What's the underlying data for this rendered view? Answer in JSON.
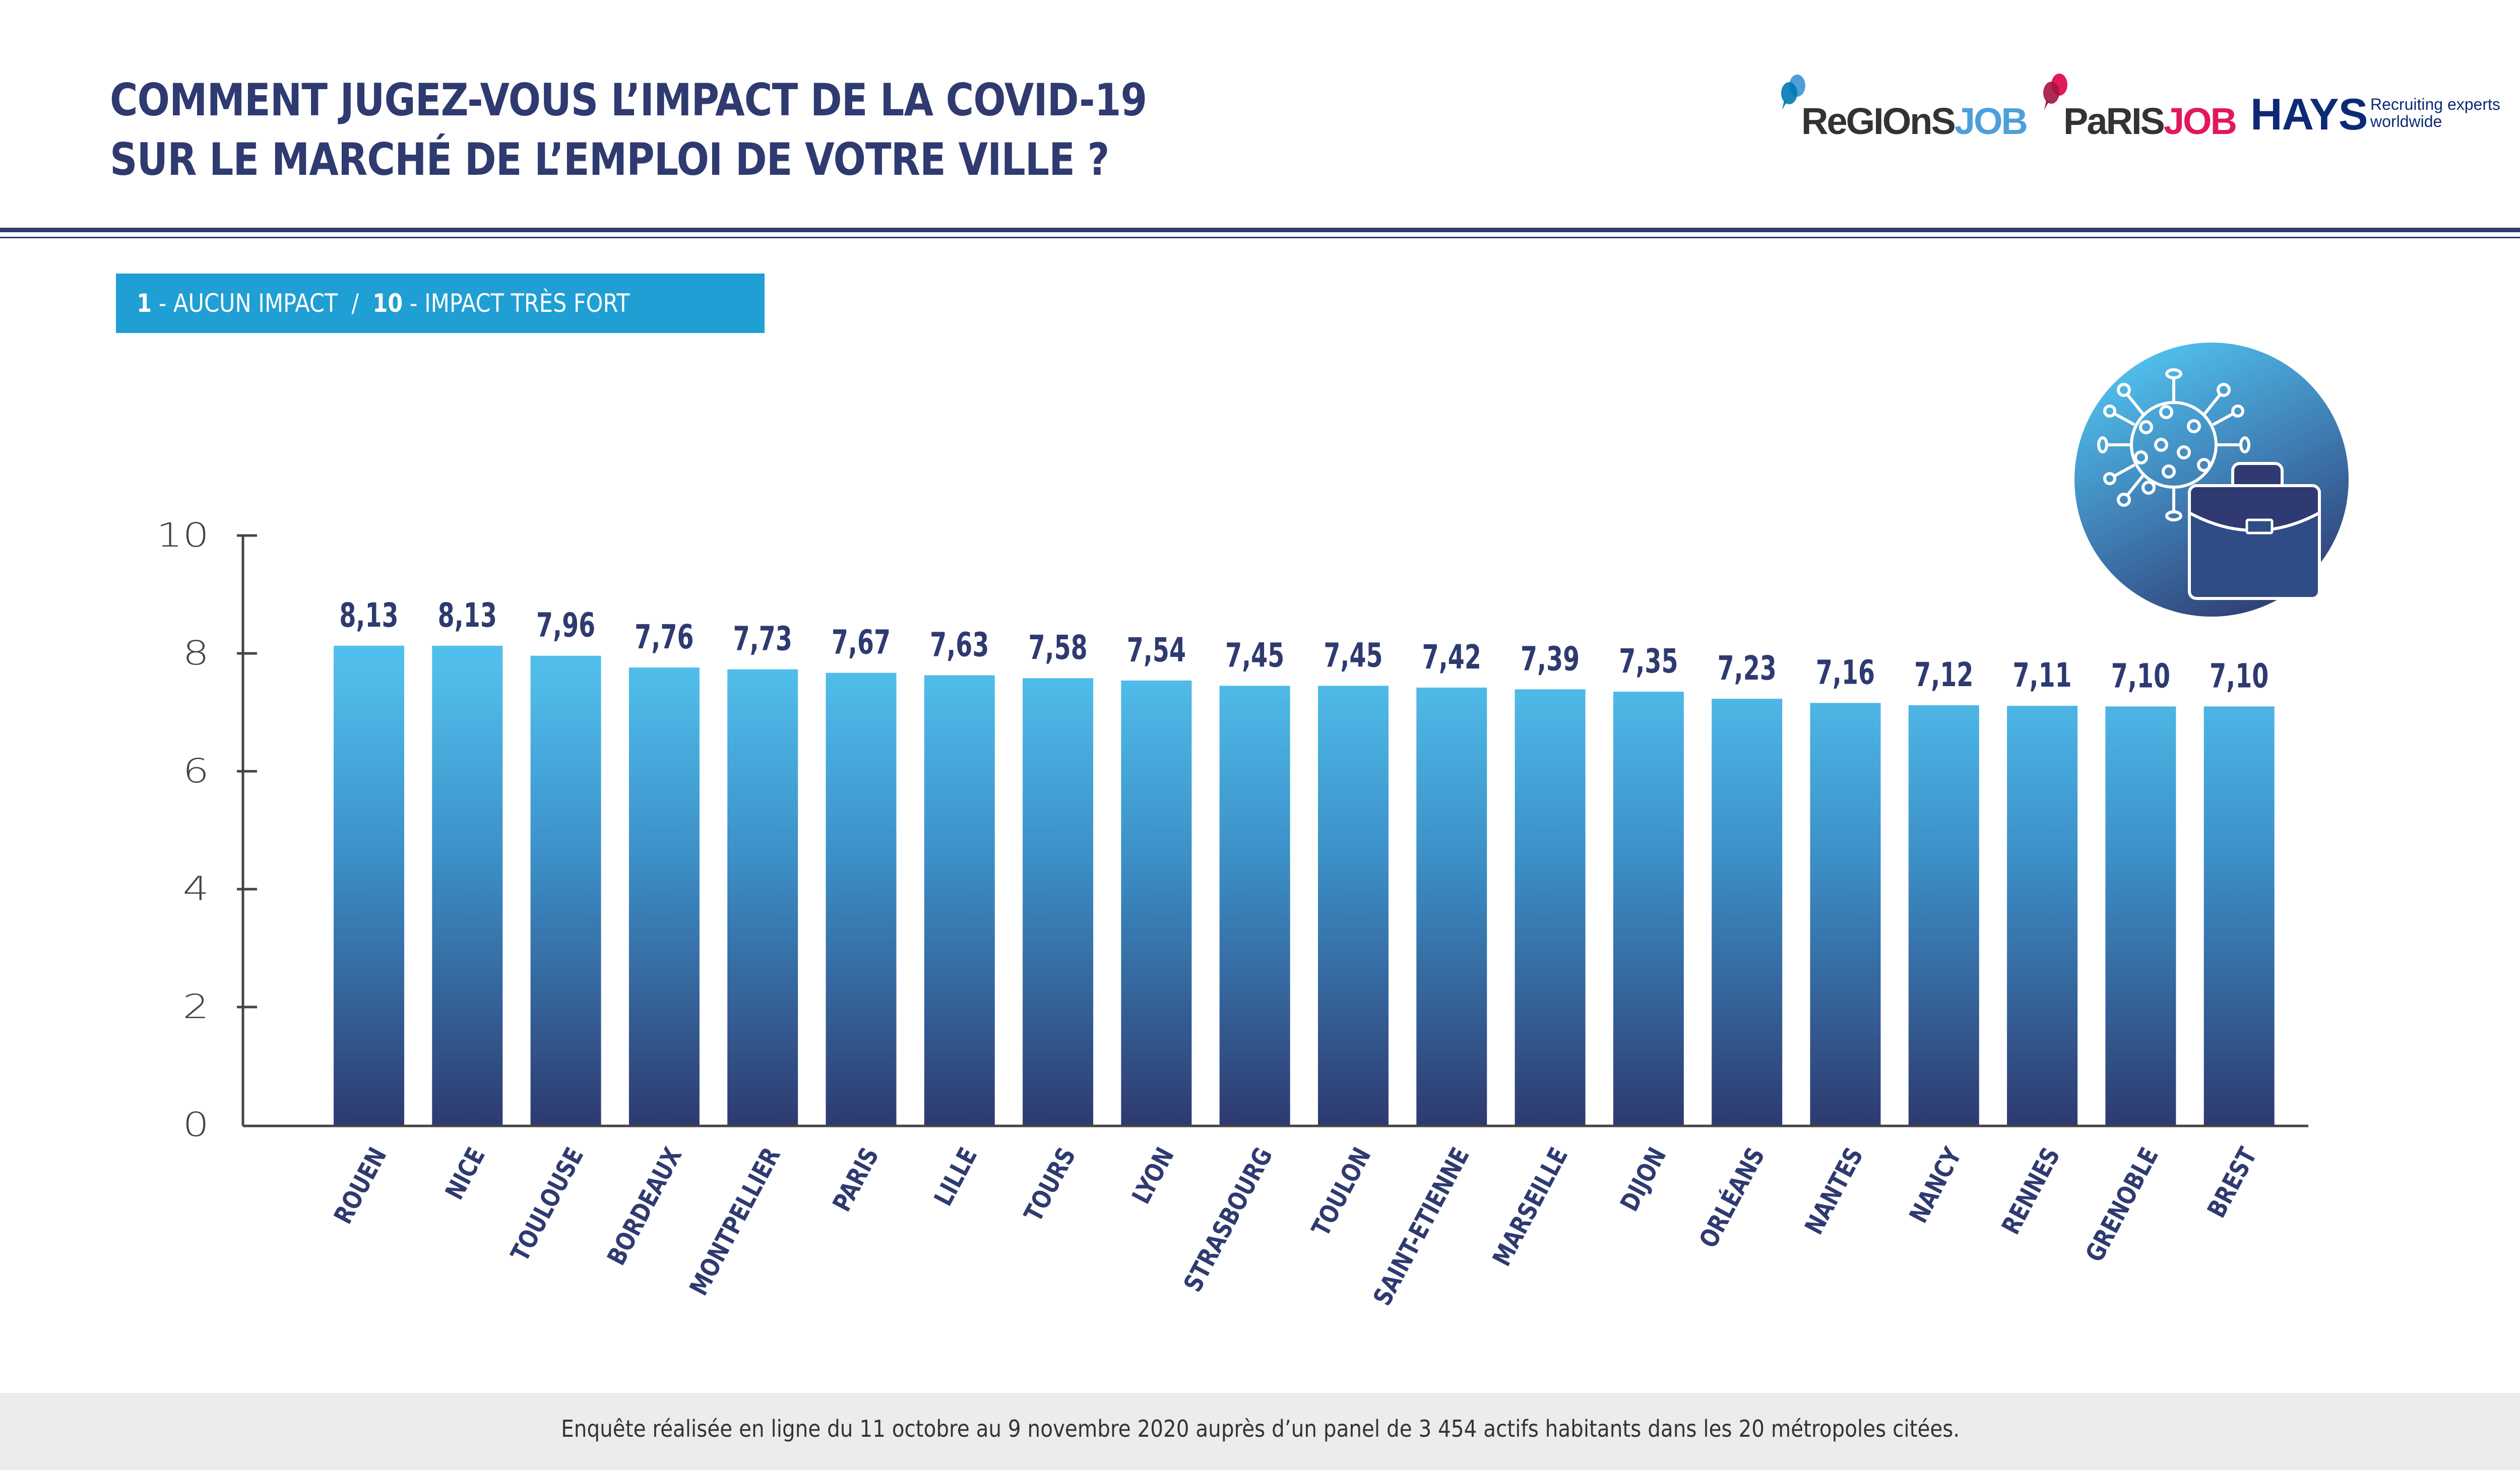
{
  "header": {
    "title_line1": "COMMENT JUGEZ-VOUS L’IMPACT DE LA COVID-19",
    "title_line2": "SUR LE MARCHÉ DE L’EMPLOI DE VOTRE VILLE ?"
  },
  "scale_badge": {
    "low_value": "1",
    "low_label": " - AUCUN IMPACT  /  ",
    "high_value": "10",
    "high_label": " - IMPACT TRÈS FORT"
  },
  "logos": {
    "regionsjob": {
      "part1": "ReGIOnS",
      "part2": "JOB",
      "color1": "#333333",
      "color2": "#4d9fd9"
    },
    "parisjob": {
      "part1": "PaRIS",
      "part2": "JOB",
      "color1": "#333333",
      "color2": "#e0195a"
    },
    "hays": {
      "word": "HAYS",
      "tagline1": "Recruiting experts",
      "tagline2": "worldwide",
      "color": "#0c2a75"
    }
  },
  "illustration": {
    "icon": "virus-briefcase-icon"
  },
  "colors": {
    "title": "#2e3a70",
    "badge": "#1f9fd4",
    "bar_top": "#4fc3f2",
    "bar_bottom": "#2e3a70",
    "value_label": "#2e3a70",
    "axis": "#444444"
  },
  "chart_data": {
    "type": "bar",
    "title": "COMMENT JUGEZ-VOUS L’IMPACT DE LA COVID-19 SUR LE MARCHÉ DE L’EMPLOI DE VOTRE VILLE ?",
    "subtitle": "1 - AUCUN IMPACT / 10 - IMPACT TRÈS FORT",
    "xlabel": "",
    "ylabel": "",
    "ylim": [
      0,
      10
    ],
    "yticks": [
      0,
      2,
      4,
      6,
      8,
      10
    ],
    "grid": false,
    "legend": "none",
    "categories": [
      "ROUEN",
      "NICE",
      "TOULOUSE",
      "BORDEAUX",
      "MONTPELLIER",
      "PARIS",
      "LILLE",
      "TOURS",
      "LYON",
      "STRASBOURG",
      "TOULON",
      "SAINT-ETIENNE",
      "MARSEILLE",
      "DIJON",
      "ORLÉANS",
      "NANTES",
      "NANCY",
      "RENNES",
      "GRENOBLE",
      "BREST"
    ],
    "values": [
      8.13,
      8.13,
      7.96,
      7.76,
      7.73,
      7.67,
      7.63,
      7.58,
      7.54,
      7.45,
      7.45,
      7.42,
      7.39,
      7.35,
      7.23,
      7.16,
      7.12,
      7.11,
      7.1,
      7.1
    ],
    "value_labels": [
      "8,13",
      "8,13",
      "7,96",
      "7,76",
      "7,73",
      "7,67",
      "7,63",
      "7,58",
      "7,54",
      "7,45",
      "7,45",
      "7,42",
      "7,39",
      "7,35",
      "7,23",
      "7,16",
      "7,12",
      "7,11",
      "7,10",
      "7,10"
    ]
  },
  "footer": {
    "note": "Enquête réalisée en ligne du 11 octobre au 9 novembre 2020 auprès d’un panel de 3 454 actifs habitants dans les 20 métropoles citées."
  }
}
